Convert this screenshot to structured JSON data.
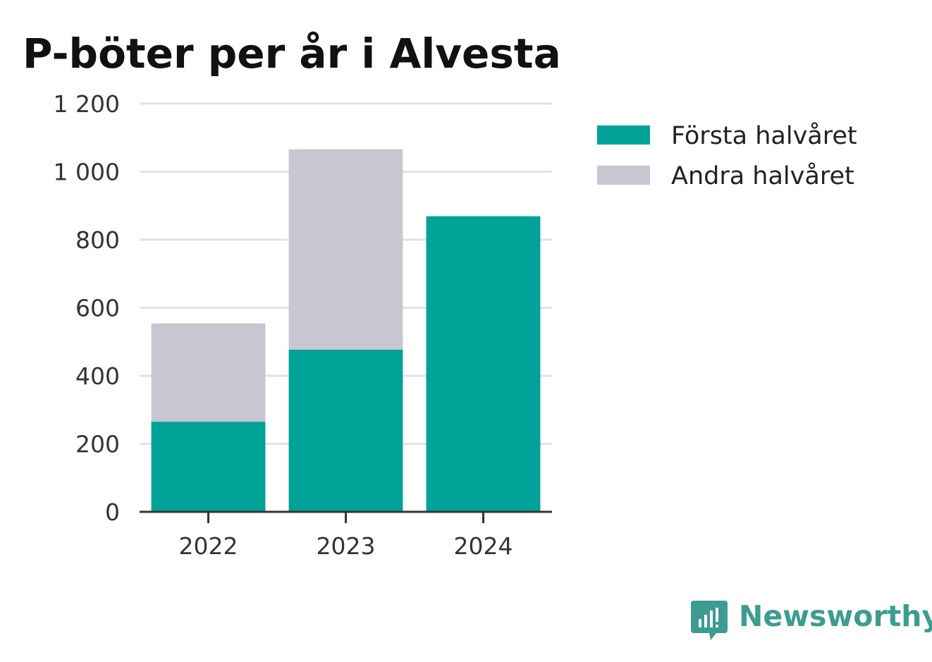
{
  "chart_data": {
    "type": "bar",
    "stacked": true,
    "title": "P-böter per år i Alvesta",
    "categories": [
      "2022",
      "2023",
      "2024"
    ],
    "series": [
      {
        "name": "Första halvåret",
        "values": [
          265,
          477,
          869
        ],
        "color": "#00a397"
      },
      {
        "name": "Andra halvåret",
        "values": [
          289,
          589,
          0
        ],
        "color": "#c8c6d1"
      }
    ],
    "yticks": [
      "0",
      "200",
      "400",
      "600",
      "800",
      "1 000",
      "1 200"
    ],
    "ylim": [
      0,
      1200
    ],
    "grid": true,
    "legend_position": "right"
  },
  "brand": {
    "name": "Newsworthy",
    "color": "#3d9c92",
    "icon": "newsworthy-logo-icon"
  }
}
